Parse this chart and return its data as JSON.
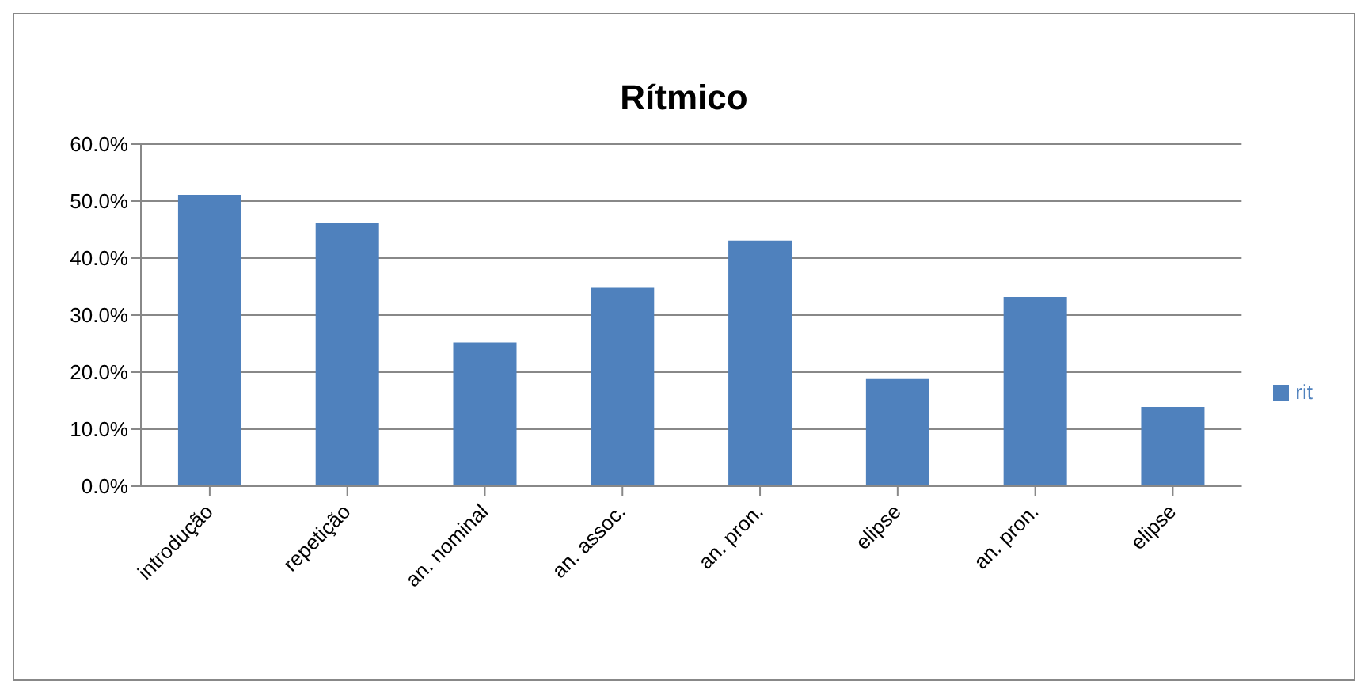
{
  "chart_data": {
    "type": "bar",
    "title": "Rítmico",
    "categories": [
      "introdução",
      "repetição",
      "an. nominal",
      "an. assoc.",
      "an. pron.",
      "elipse",
      "an. pron.",
      "elipse"
    ],
    "series": [
      {
        "name": "rit",
        "color": "#4f81bd",
        "values": [
          51.1,
          46.1,
          25.2,
          34.8,
          43.1,
          18.8,
          33.2,
          13.9
        ]
      }
    ],
    "ylim": [
      0,
      60
    ],
    "yticks": [
      {
        "value": 0,
        "label": "0.0%"
      },
      {
        "value": 10,
        "label": "10.0%"
      },
      {
        "value": 20,
        "label": "20.0%"
      },
      {
        "value": 30,
        "label": "30.0%"
      },
      {
        "value": 40,
        "label": "40.0%"
      },
      {
        "value": 50,
        "label": "50.0%"
      },
      {
        "value": 60,
        "label": "60.0%"
      }
    ],
    "grid": "y",
    "legend": "right"
  }
}
